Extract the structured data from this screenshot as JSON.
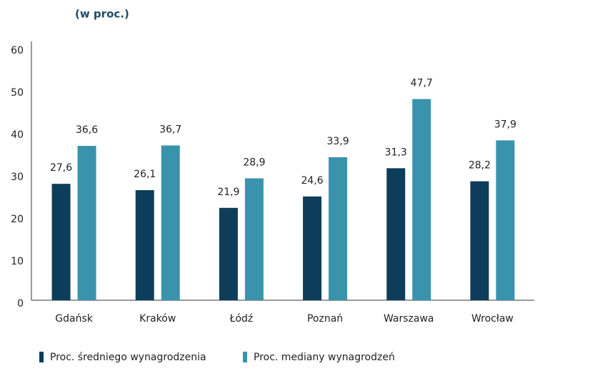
{
  "chart_data": {
    "type": "bar",
    "subtitle": "(w proc.)",
    "categories": [
      "Gdańsk",
      "Kraków",
      "Łódź",
      "Poznań",
      "Warszawa",
      "Wrocław"
    ],
    "series": [
      {
        "name": "Proc. średniego wynagrodzenia",
        "color": "#0e3d5b",
        "values": [
          27.6,
          26.1,
          21.9,
          24.6,
          31.3,
          28.2
        ],
        "value_labels": [
          "27,6",
          "26,1",
          "21,9",
          "24,6",
          "31,3",
          "28,2"
        ]
      },
      {
        "name": "Proc. mediany wynagrodzeń",
        "color": "#3a93ad",
        "values": [
          36.6,
          36.7,
          28.9,
          33.9,
          47.7,
          37.9
        ],
        "value_labels": [
          "36,6",
          "36,7",
          "28,9",
          "33,9",
          "47,7",
          "37,9"
        ]
      }
    ],
    "ylim": [
      0,
      60
    ],
    "yticks": [
      0,
      10,
      20,
      30,
      40,
      50,
      60
    ],
    "grid": false,
    "legend": "bottom"
  }
}
